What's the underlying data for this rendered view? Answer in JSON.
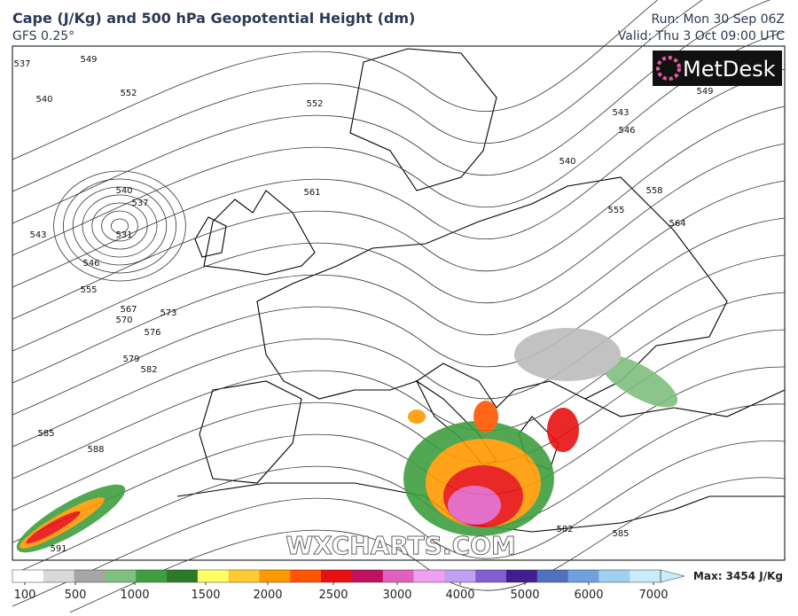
{
  "header": {
    "title": "Cape (J/Kg) and 500 hPa Geopotential Height (dm)",
    "subtitle": "GFS 0.25°",
    "run": "Run: Mon 30 Sep 06Z",
    "valid": "Valid: Thu 3 Oct 09:00 UTC"
  },
  "logo": "MetDesk",
  "watermark": "WXCHARTS.COM",
  "contour_labels": [
    537,
    540,
    549,
    552,
    540,
    537,
    531,
    543,
    546,
    555,
    567,
    570,
    573,
    576,
    579,
    582,
    585,
    588,
    591,
    552,
    561,
    543,
    546,
    549,
    540,
    555,
    558,
    564,
    582,
    585
  ],
  "colorbar": {
    "ticks": [
      100,
      500,
      1000,
      1500,
      2000,
      2500,
      3000,
      4000,
      5000,
      6000,
      7000
    ],
    "colors": [
      "#ffffff",
      "#d9d9d9",
      "#a6a6a6",
      "#7fbf7f",
      "#3f9f3f",
      "#2a7a2a",
      "#ffff66",
      "#ffcc33",
      "#ff9900",
      "#ff5500",
      "#e81010",
      "#c01060",
      "#e060c0",
      "#f0a0f0",
      "#c0a0f0",
      "#8060d0",
      "#402090",
      "#5070c0",
      "#70a0e0",
      "#a0d0f0",
      "#c8ecfa"
    ],
    "max_label": "Max: 3454 J/Kg"
  }
}
